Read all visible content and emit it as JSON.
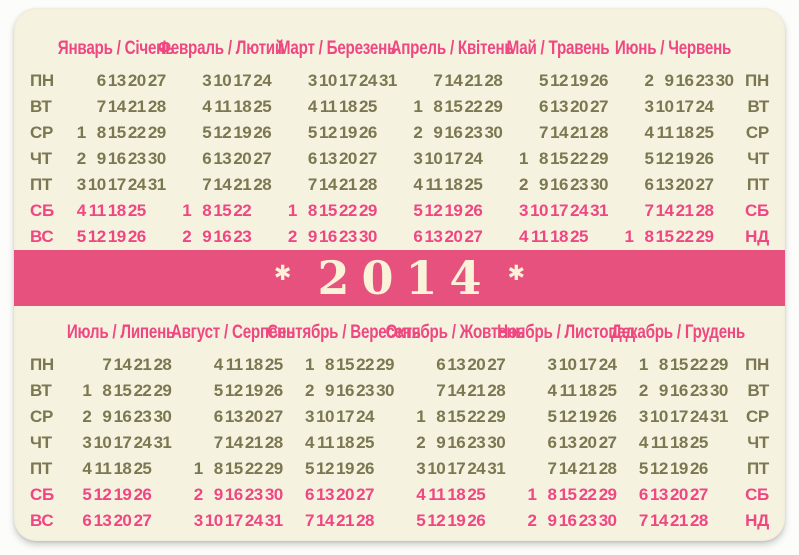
{
  "colors": {
    "photo_bg": "#fcfcfa",
    "cream": "#f6f2e0",
    "pink": "#ee4781",
    "olive": "#7b7751",
    "band": "#e7517e",
    "band_text": "#faf3da"
  },
  "banner": {
    "year": "2014",
    "left_star": "✱",
    "right_star": "✱"
  },
  "day_labels_left": [
    "ПН",
    "ВТ",
    "СР",
    "ЧТ",
    "ПТ",
    "СБ",
    "ВС"
  ],
  "day_labels_right": [
    "ПН",
    "ВТ",
    "СР",
    "ЧТ",
    "ПТ",
    "СБ",
    "НД"
  ],
  "top_months": [
    {
      "name": "Январь / Січень",
      "rows": [
        [
          "",
          "6",
          "13",
          "20",
          "27"
        ],
        [
          "",
          "7",
          "14",
          "21",
          "28"
        ],
        [
          "1",
          "8",
          "15",
          "22",
          "29"
        ],
        [
          "2",
          "9",
          "16",
          "23",
          "30"
        ],
        [
          "3",
          "10",
          "17",
          "24",
          "31"
        ],
        [
          "4",
          "11",
          "18",
          "25",
          ""
        ],
        [
          "5",
          "12",
          "19",
          "26",
          ""
        ]
      ]
    },
    {
      "name": "Февраль / Лютий",
      "rows": [
        [
          "",
          "3",
          "10",
          "17",
          "24"
        ],
        [
          "",
          "4",
          "11",
          "18",
          "25"
        ],
        [
          "",
          "5",
          "12",
          "19",
          "26"
        ],
        [
          "",
          "6",
          "13",
          "20",
          "27"
        ],
        [
          "",
          "7",
          "14",
          "21",
          "28"
        ],
        [
          "1",
          "8",
          "15",
          "22",
          ""
        ],
        [
          "2",
          "9",
          "16",
          "23",
          ""
        ]
      ]
    },
    {
      "name": "Март / Березень",
      "rows": [
        [
          "",
          "3",
          "10",
          "17",
          "24",
          "31"
        ],
        [
          "",
          "4",
          "11",
          "18",
          "25",
          ""
        ],
        [
          "",
          "5",
          "12",
          "19",
          "26",
          ""
        ],
        [
          "",
          "6",
          "13",
          "20",
          "27",
          ""
        ],
        [
          "",
          "7",
          "14",
          "21",
          "28",
          ""
        ],
        [
          "1",
          "8",
          "15",
          "22",
          "29",
          ""
        ],
        [
          "2",
          "9",
          "16",
          "23",
          "30",
          ""
        ]
      ]
    },
    {
      "name": "Апрель / Квітень",
      "rows": [
        [
          "",
          "7",
          "14",
          "21",
          "28"
        ],
        [
          "1",
          "8",
          "15",
          "22",
          "29"
        ],
        [
          "2",
          "9",
          "16",
          "23",
          "30"
        ],
        [
          "3",
          "10",
          "17",
          "24",
          ""
        ],
        [
          "4",
          "11",
          "18",
          "25",
          ""
        ],
        [
          "5",
          "12",
          "19",
          "26",
          ""
        ],
        [
          "6",
          "13",
          "20",
          "27",
          ""
        ]
      ]
    },
    {
      "name": "Май / Травень",
      "rows": [
        [
          "",
          "5",
          "12",
          "19",
          "26"
        ],
        [
          "",
          "6",
          "13",
          "20",
          "27"
        ],
        [
          "",
          "7",
          "14",
          "21",
          "28"
        ],
        [
          "1",
          "8",
          "15",
          "22",
          "29"
        ],
        [
          "2",
          "9",
          "16",
          "23",
          "30"
        ],
        [
          "3",
          "10",
          "17",
          "24",
          "31"
        ],
        [
          "4",
          "11",
          "18",
          "25",
          ""
        ]
      ]
    },
    {
      "name": "Июнь / Червень",
      "rows": [
        [
          "",
          "2",
          "9",
          "16",
          "23",
          "30"
        ],
        [
          "",
          "3",
          "10",
          "17",
          "24",
          ""
        ],
        [
          "",
          "4",
          "11",
          "18",
          "25",
          ""
        ],
        [
          "",
          "5",
          "12",
          "19",
          "26",
          ""
        ],
        [
          "",
          "6",
          "13",
          "20",
          "27",
          ""
        ],
        [
          "",
          "7",
          "14",
          "21",
          "28",
          ""
        ],
        [
          "1",
          "8",
          "15",
          "22",
          "29",
          ""
        ]
      ]
    }
  ],
  "bottom_months": [
    {
      "name": "Июль / Липень",
      "rows": [
        [
          "",
          "7",
          "14",
          "21",
          "28"
        ],
        [
          "1",
          "8",
          "15",
          "22",
          "29"
        ],
        [
          "2",
          "9",
          "16",
          "23",
          "30"
        ],
        [
          "3",
          "10",
          "17",
          "24",
          "31"
        ],
        [
          "4",
          "11",
          "18",
          "25",
          ""
        ],
        [
          "5",
          "12",
          "19",
          "26",
          ""
        ],
        [
          "6",
          "13",
          "20",
          "27",
          ""
        ]
      ]
    },
    {
      "name": "Август / Серпень",
      "rows": [
        [
          "",
          "4",
          "11",
          "18",
          "25"
        ],
        [
          "",
          "5",
          "12",
          "19",
          "26"
        ],
        [
          "",
          "6",
          "13",
          "20",
          "27"
        ],
        [
          "",
          "7",
          "14",
          "21",
          "28"
        ],
        [
          "1",
          "8",
          "15",
          "22",
          "29"
        ],
        [
          "2",
          "9",
          "16",
          "23",
          "30"
        ],
        [
          "3",
          "10",
          "17",
          "24",
          "31"
        ]
      ]
    },
    {
      "name": "Сентябрь / Вересень",
      "rows": [
        [
          "1",
          "8",
          "15",
          "22",
          "29"
        ],
        [
          "2",
          "9",
          "16",
          "23",
          "30"
        ],
        [
          "3",
          "10",
          "17",
          "24",
          ""
        ],
        [
          "4",
          "11",
          "18",
          "25",
          ""
        ],
        [
          "5",
          "12",
          "19",
          "26",
          ""
        ],
        [
          "6",
          "13",
          "20",
          "27",
          ""
        ],
        [
          "7",
          "14",
          "21",
          "28",
          ""
        ]
      ]
    },
    {
      "name": "Октябрь / Жовтень",
      "rows": [
        [
          "",
          "6",
          "13",
          "20",
          "27"
        ],
        [
          "",
          "7",
          "14",
          "21",
          "28"
        ],
        [
          "1",
          "8",
          "15",
          "22",
          "29"
        ],
        [
          "2",
          "9",
          "16",
          "23",
          "30"
        ],
        [
          "3",
          "10",
          "17",
          "24",
          "31"
        ],
        [
          "4",
          "11",
          "18",
          "25",
          ""
        ],
        [
          "5",
          "12",
          "19",
          "26",
          ""
        ]
      ]
    },
    {
      "name": "Ноябрь / Листопад",
      "rows": [
        [
          "",
          "3",
          "10",
          "17",
          "24"
        ],
        [
          "",
          "4",
          "11",
          "18",
          "25"
        ],
        [
          "",
          "5",
          "12",
          "19",
          "26"
        ],
        [
          "",
          "6",
          "13",
          "20",
          "27"
        ],
        [
          "",
          "7",
          "14",
          "21",
          "28"
        ],
        [
          "1",
          "8",
          "15",
          "22",
          "29"
        ],
        [
          "2",
          "9",
          "16",
          "23",
          "30"
        ]
      ]
    },
    {
      "name": "Декабрь / Грудень",
      "rows": [
        [
          "1",
          "8",
          "15",
          "22",
          "29"
        ],
        [
          "2",
          "9",
          "16",
          "23",
          "30"
        ],
        [
          "3",
          "10",
          "17",
          "24",
          "31"
        ],
        [
          "4",
          "11",
          "18",
          "25",
          ""
        ],
        [
          "5",
          "12",
          "19",
          "26",
          ""
        ],
        [
          "6",
          "13",
          "20",
          "27",
          ""
        ],
        [
          "7",
          "14",
          "21",
          "28",
          ""
        ]
      ]
    }
  ]
}
